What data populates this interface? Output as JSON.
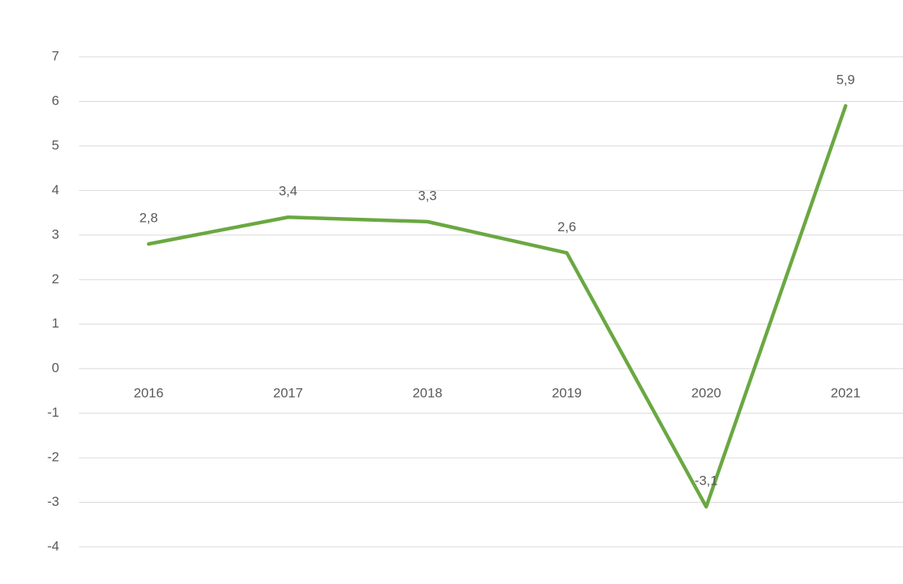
{
  "chart_data": {
    "type": "line",
    "categories": [
      "2016",
      "2017",
      "2018",
      "2019",
      "2020",
      "2021"
    ],
    "values": [
      2.8,
      3.4,
      3.3,
      2.6,
      -3.1,
      5.9
    ],
    "value_labels": [
      "2,8",
      "3,4",
      "3,3",
      "2,6",
      "-3,1",
      "5,9"
    ],
    "color": "#6aa842",
    "ylim": [
      -4,
      7
    ],
    "yticks": [
      -4,
      -3,
      -2,
      -1,
      0,
      1,
      2,
      3,
      4,
      5,
      6,
      7
    ],
    "grid": true
  }
}
